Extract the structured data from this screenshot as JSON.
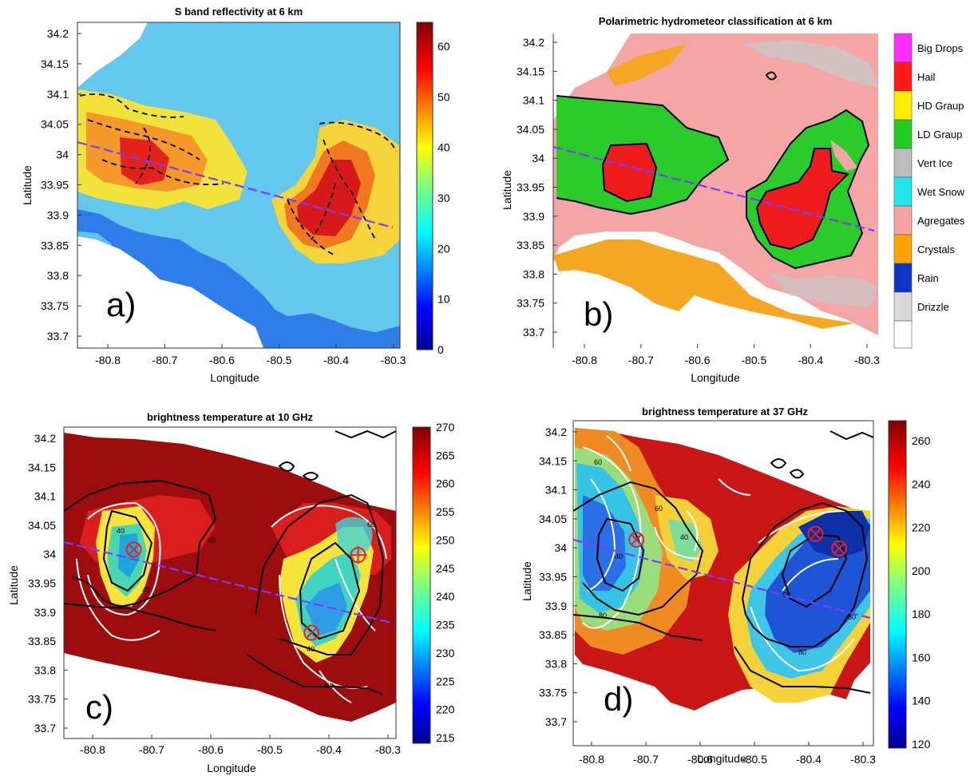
{
  "figure": {
    "panels": [
      {
        "id": "a",
        "title": "S band reflectivity at 6 km",
        "xlabel": "Longitude",
        "ylabel": "Latitude",
        "xticks": [
          "-80.8",
          "-80.7",
          "-80.6",
          "-80.5",
          "-80.4",
          "-80.3"
        ],
        "yticks": [
          "34.2",
          "34.15",
          "34.1",
          "34.05",
          "34",
          "33.95",
          "33.9",
          "33.85",
          "33.8",
          "33.75",
          "33.7"
        ],
        "colorbar": {
          "ticks": [
            "60",
            "50",
            "40",
            "30",
            "20",
            "10",
            "0"
          ]
        },
        "panel_label": "a)"
      },
      {
        "id": "b",
        "title": "Polarimetric hydrometeor classification at 6 km",
        "xlabel": "Longitude",
        "ylabel": "Latitude",
        "xticks": [
          "-80.8",
          "-80.7",
          "-80.6",
          "-80.5",
          "-80.4",
          "-80.3"
        ],
        "yticks": [
          "34.2",
          "34.15",
          "34.1",
          "34.05",
          "34",
          "33.95",
          "33.9",
          "33.85",
          "33.8",
          "33.75",
          "33.7"
        ],
        "classes": [
          {
            "label": "Big Drops",
            "color": "#ff2cff"
          },
          {
            "label": "Hail",
            "color": "#ff1a1a"
          },
          {
            "label": "HD Graup",
            "color": "#ffee00"
          },
          {
            "label": "LD Graup",
            "color": "#22cc22"
          },
          {
            "label": "Vert Ice",
            "color": "#bdbdbd"
          },
          {
            "label": "Wet Snow",
            "color": "#22e5ee"
          },
          {
            "label": "Agregates",
            "color": "#f5a3a3"
          },
          {
            "label": "Crystals",
            "color": "#ffa400"
          },
          {
            "label": "Rain",
            "color": "#0d36c7"
          },
          {
            "label": "Drizzle",
            "color": "#d9d9d9"
          }
        ],
        "panel_label": "b)"
      },
      {
        "id": "c",
        "title": "brightness temperature at 10 GHz",
        "xlabel": "Longitude",
        "ylabel": "Latitude",
        "xticks": [
          "-80.8",
          "-80.7",
          "-80.6",
          "-80.5",
          "-80.4",
          "-80.3"
        ],
        "yticks": [
          "34.2",
          "34.15",
          "34.1",
          "34.05",
          "34",
          "33.95",
          "33.9",
          "33.85",
          "33.8",
          "33.75",
          "33.7"
        ],
        "colorbar": {
          "ticks": [
            "270",
            "265",
            "260",
            "255",
            "250",
            "245",
            "240",
            "235",
            "230",
            "225",
            "220",
            "215"
          ]
        },
        "contour_labels": [
          "40",
          "40",
          "60",
          "60",
          "40",
          "60"
        ],
        "panel_label": "c)"
      },
      {
        "id": "d",
        "title": "brightness temperature at 37 GHz",
        "xlabel": "Longitude",
        "ylabel": "Latitude",
        "xticks": [
          "-80.8",
          "-80.7",
          "-80.6",
          "-80.5",
          "-80.4",
          "-80.3"
        ],
        "yticks": [
          "34.2",
          "34.15",
          "34.1",
          "34.05",
          "34",
          "33.95",
          "33.9",
          "33.85",
          "33.8",
          "33.75",
          "33.7"
        ],
        "colorbar": {
          "ticks": [
            "260",
            "240",
            "220",
            "200",
            "180",
            "160",
            "140",
            "120"
          ]
        },
        "contour_labels": [
          "60",
          "40",
          "40",
          "80",
          "60",
          "80",
          "80",
          "60"
        ],
        "panel_label": "d)"
      }
    ]
  },
  "chart_data": [
    {
      "type": "heatmap",
      "title": "S band reflectivity at 6 km",
      "xlabel": "Longitude",
      "ylabel": "Latitude",
      "xlim": [
        -80.85,
        -80.28
      ],
      "ylim": [
        33.66,
        34.22
      ],
      "colorbar_range": [
        0,
        65
      ],
      "cross_section_line": {
        "from": [
          -80.85,
          34.01
        ],
        "to": [
          -80.29,
          33.865
        ]
      }
    },
    {
      "type": "heatmap",
      "title": "Polarimetric hydrometeor classification at 6 km",
      "xlabel": "Longitude",
      "ylabel": "Latitude",
      "xlim": [
        -80.85,
        -80.28
      ],
      "ylim": [
        33.66,
        34.22
      ],
      "categories": [
        "Big Drops",
        "Hail",
        "HD Graup",
        "LD Graup",
        "Vert Ice",
        "Wet Snow",
        "Agregates",
        "Crystals",
        "Rain",
        "Drizzle"
      ],
      "cross_section_line": {
        "from": [
          -80.85,
          34.01
        ],
        "to": [
          -80.29,
          33.865
        ]
      }
    },
    {
      "type": "heatmap",
      "title": "brightness temperature at 10 GHz",
      "xlabel": "Longitude",
      "ylabel": "Latitude",
      "xlim": [
        -80.85,
        -80.28
      ],
      "ylim": [
        33.66,
        34.22
      ],
      "colorbar_range": [
        215,
        270
      ],
      "markers": [
        [
          -80.73,
          34.0
        ],
        [
          -80.425,
          33.85
        ],
        [
          -80.345,
          33.99
        ]
      ],
      "cross_section_line": {
        "from": [
          -80.85,
          34.01
        ],
        "to": [
          -80.29,
          33.865
        ]
      }
    },
    {
      "type": "heatmap",
      "title": "brightness temperature at 37 GHz",
      "xlabel": "Longitude",
      "ylabel": "Latitude",
      "xlim": [
        -80.85,
        -80.28
      ],
      "ylim": [
        33.66,
        34.22
      ],
      "colorbar_range": [
        115,
        270
      ],
      "markers": [
        [
          -80.73,
          34.015
        ],
        [
          -80.39,
          34.025
        ],
        [
          -80.345,
          34.0
        ]
      ],
      "cross_section_line": {
        "from": [
          -80.85,
          34.01
        ],
        "to": [
          -80.29,
          33.865
        ]
      }
    }
  ]
}
